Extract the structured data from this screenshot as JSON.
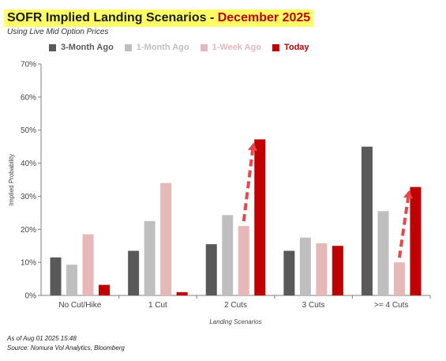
{
  "header": {
    "title_main": "SOFR Implied Landing Scenarios",
    "title_sep": "-",
    "title_highlight": "December 2025",
    "subtitle": "Using Live Mid Option Prices"
  },
  "footer": {
    "line1": "As of Aug 01 2025 15:48",
    "line2": "Source: Nomura Vol Analytics, Bloomberg"
  },
  "colors": {
    "title_highlight": "#c00000",
    "title_background": "#ffff66",
    "arrow": "#e8474a"
  },
  "chart_data": {
    "type": "bar",
    "categories": [
      "No Cut/Hike",
      "1 Cut",
      "2 Cuts",
      "3 Cuts",
      ">= 4 Cuts"
    ],
    "series": [
      {
        "name": "3-Month Ago",
        "color": "#595959",
        "values": [
          11.5,
          13.5,
          15.5,
          13.5,
          45.0
        ]
      },
      {
        "name": "1-Month Ago",
        "color": "#bfbfbf",
        "values": [
          9.3,
          22.5,
          24.3,
          17.5,
          25.5
        ]
      },
      {
        "name": "1-Week Ago",
        "color": "#e6b8b8",
        "values": [
          18.5,
          34.0,
          21.0,
          15.8,
          10.0
        ]
      },
      {
        "name": "Today",
        "color": "#c00000",
        "values": [
          3.2,
          1.0,
          47.2,
          15.0,
          32.8
        ]
      }
    ],
    "xlabel": "Landing Scenarios",
    "ylabel": "Implied Probability",
    "ylim": [
      0,
      70
    ],
    "yticks": [
      "0%",
      "10%",
      "20%",
      "30%",
      "40%",
      "50%",
      "60%",
      "70%"
    ],
    "grid": false,
    "legend_position": "top-left",
    "annotations": [
      {
        "type": "arrow",
        "category": "2 Cuts",
        "from_series": "1-Week Ago",
        "to_series": "Today"
      },
      {
        "type": "arrow",
        "category": ">= 4 Cuts",
        "from_series": "1-Week Ago",
        "to_series": "Today"
      }
    ]
  }
}
